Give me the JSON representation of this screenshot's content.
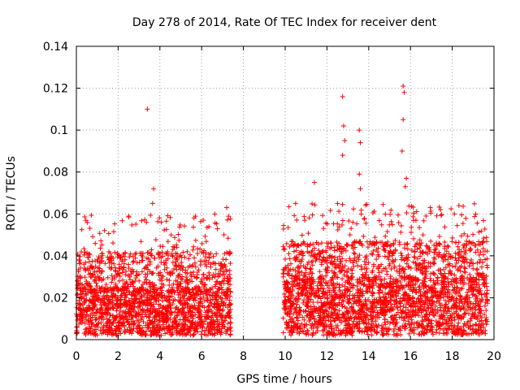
{
  "chart_data": {
    "type": "scatter",
    "title": "Day 278 of 2014, Rate Of TEC Index for receiver dent",
    "xlabel": "GPS time / hours",
    "ylabel": "ROTI / TECUs",
    "xlim": [
      0,
      20
    ],
    "ylim": [
      0,
      0.14
    ],
    "x_ticks": [
      0,
      2,
      4,
      6,
      8,
      10,
      12,
      14,
      16,
      18,
      20
    ],
    "y_ticks": [
      0,
      0.02,
      0.04,
      0.06,
      0.08,
      0.1,
      0.12,
      0.14
    ],
    "y_tick_labels": [
      "0",
      "0.02",
      "0.04",
      "0.06",
      "0.08",
      "0.1",
      "0.12",
      "0.14"
    ],
    "grid": true,
    "marker": "+",
    "color": "#ff0000",
    "data_gap_hours": [
      7.4,
      9.9
    ],
    "series": [
      {
        "name": "ROTI",
        "segments": [
          {
            "x_start": 0.0,
            "x_end": 7.4,
            "typical_min": 0.002,
            "typical_max": 0.025
          },
          {
            "x_start": 9.9,
            "x_end": 19.7,
            "typical_min": 0.002,
            "typical_max": 0.03
          }
        ],
        "notable_points": [
          {
            "x": 3.4,
            "y": 0.11
          },
          {
            "x": 3.7,
            "y": 0.072
          },
          {
            "x": 3.65,
            "y": 0.065
          },
          {
            "x": 7.2,
            "y": 0.063
          },
          {
            "x": 10.5,
            "y": 0.065
          },
          {
            "x": 11.4,
            "y": 0.075
          },
          {
            "x": 12.75,
            "y": 0.116
          },
          {
            "x": 12.8,
            "y": 0.102
          },
          {
            "x": 12.85,
            "y": 0.095
          },
          {
            "x": 12.75,
            "y": 0.088
          },
          {
            "x": 13.55,
            "y": 0.1
          },
          {
            "x": 13.6,
            "y": 0.094
          },
          {
            "x": 13.55,
            "y": 0.079
          },
          {
            "x": 13.6,
            "y": 0.072
          },
          {
            "x": 15.65,
            "y": 0.121
          },
          {
            "x": 15.7,
            "y": 0.118
          },
          {
            "x": 15.65,
            "y": 0.105
          },
          {
            "x": 15.6,
            "y": 0.09
          },
          {
            "x": 15.8,
            "y": 0.077
          },
          {
            "x": 15.75,
            "y": 0.073
          },
          {
            "x": 16.95,
            "y": 0.063
          },
          {
            "x": 18.1,
            "y": 0.06
          }
        ]
      }
    ]
  }
}
